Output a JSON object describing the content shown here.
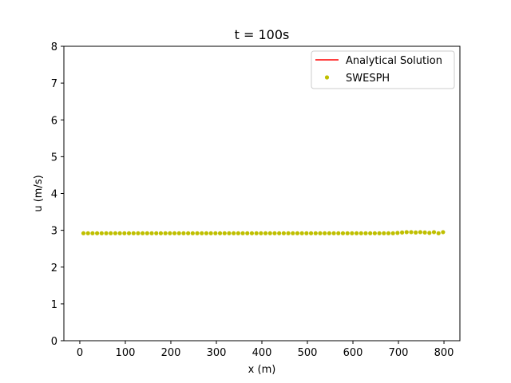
{
  "chart_data": {
    "type": "line",
    "title": "t = 100s",
    "xlabel": "x (m)",
    "ylabel": "u (m/s)",
    "xlim": [
      -35,
      835
    ],
    "ylim": [
      0,
      8
    ],
    "xticks": [
      0,
      100,
      200,
      300,
      400,
      500,
      600,
      700,
      800
    ],
    "yticks": [
      0,
      1,
      2,
      3,
      4,
      5,
      6,
      7,
      8
    ],
    "grid": false,
    "legend_position": "top-right",
    "colors": {
      "analytical": "#ff0000",
      "swesph": "#bfbf00"
    },
    "series": [
      {
        "name": "Analytical Solution",
        "kind": "line",
        "x": [],
        "y": []
      },
      {
        "name": "SWESPH",
        "kind": "scatter",
        "x": [
          8,
          18,
          28,
          38,
          48,
          58,
          68,
          78,
          88,
          98,
          108,
          118,
          128,
          138,
          148,
          158,
          168,
          178,
          188,
          198,
          208,
          218,
          228,
          238,
          248,
          258,
          268,
          278,
          288,
          298,
          308,
          318,
          328,
          338,
          348,
          358,
          368,
          378,
          388,
          398,
          408,
          418,
          428,
          438,
          448,
          458,
          468,
          478,
          488,
          498,
          508,
          518,
          528,
          538,
          548,
          558,
          568,
          578,
          588,
          598,
          608,
          618,
          628,
          638,
          648,
          658,
          668,
          678,
          688,
          698,
          708,
          718,
          728,
          738,
          748,
          758,
          768,
          778,
          788,
          798
        ],
        "y": [
          2.92,
          2.92,
          2.92,
          2.92,
          2.92,
          2.92,
          2.92,
          2.92,
          2.92,
          2.92,
          2.92,
          2.92,
          2.92,
          2.92,
          2.92,
          2.92,
          2.92,
          2.92,
          2.92,
          2.92,
          2.92,
          2.92,
          2.92,
          2.92,
          2.92,
          2.92,
          2.92,
          2.92,
          2.92,
          2.92,
          2.92,
          2.92,
          2.92,
          2.92,
          2.92,
          2.92,
          2.92,
          2.92,
          2.92,
          2.92,
          2.92,
          2.92,
          2.92,
          2.92,
          2.92,
          2.92,
          2.92,
          2.92,
          2.92,
          2.92,
          2.92,
          2.92,
          2.92,
          2.92,
          2.92,
          2.92,
          2.92,
          2.92,
          2.92,
          2.92,
          2.92,
          2.92,
          2.92,
          2.92,
          2.92,
          2.92,
          2.92,
          2.92,
          2.92,
          2.93,
          2.94,
          2.95,
          2.95,
          2.94,
          2.95,
          2.94,
          2.93,
          2.95,
          2.92,
          2.95
        ]
      }
    ]
  }
}
